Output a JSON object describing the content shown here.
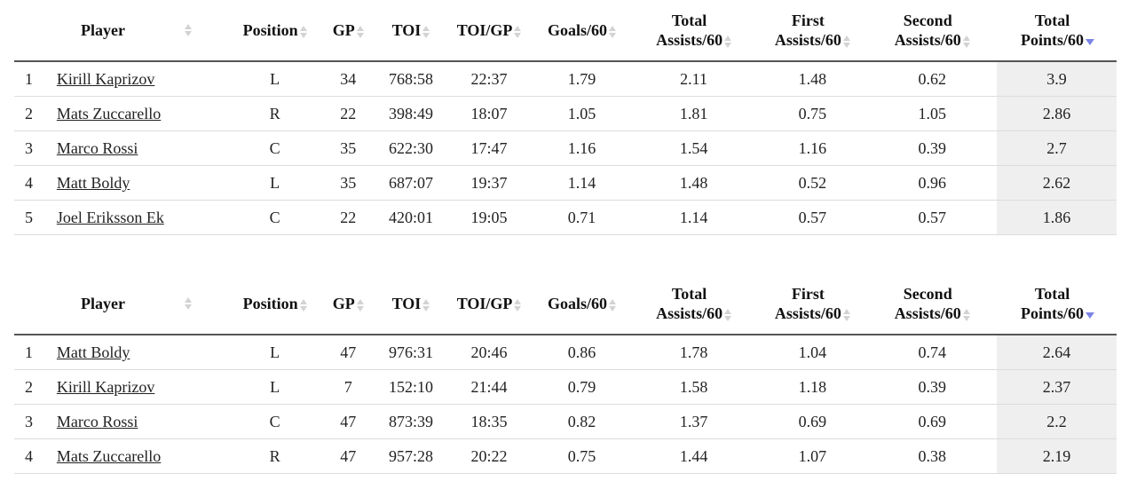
{
  "headers": {
    "player": "Player",
    "position": "Position",
    "gp": "GP",
    "toi": "TOI",
    "toi_gp": "TOI/GP",
    "goals60": "Goals/60",
    "total_assists60_l1": "Total",
    "total_assists60_l2": "Assists/60",
    "first_assists60_l1": "First",
    "first_assists60_l2": "Assists/60",
    "second_assists60_l1": "Second",
    "second_assists60_l2": "Assists/60",
    "total_points60_l1": "Total",
    "total_points60_l2": "Points/60"
  },
  "icons": {
    "sort_neutral": "sort-both-icon",
    "sort_desc": "sort-desc-icon",
    "sort_desc_color": "#7b84e6"
  },
  "table1": {
    "rows": [
      {
        "rank": "1",
        "player": "Kirill Kaprizov",
        "position": "L",
        "gp": "34",
        "toi": "768:58",
        "toi_gp": "22:37",
        "goals60": "1.79",
        "total_assists60": "2.11",
        "first_assists60": "1.48",
        "second_assists60": "0.62",
        "total_points60": "3.9"
      },
      {
        "rank": "2",
        "player": "Mats Zuccarello",
        "position": "R",
        "gp": "22",
        "toi": "398:49",
        "toi_gp": "18:07",
        "goals60": "1.05",
        "total_assists60": "1.81",
        "first_assists60": "0.75",
        "second_assists60": "1.05",
        "total_points60": "2.86"
      },
      {
        "rank": "3",
        "player": "Marco Rossi",
        "position": "C",
        "gp": "35",
        "toi": "622:30",
        "toi_gp": "17:47",
        "goals60": "1.16",
        "total_assists60": "1.54",
        "first_assists60": "1.16",
        "second_assists60": "0.39",
        "total_points60": "2.7"
      },
      {
        "rank": "4",
        "player": "Matt Boldy",
        "position": "L",
        "gp": "35",
        "toi": "687:07",
        "toi_gp": "19:37",
        "goals60": "1.14",
        "total_assists60": "1.48",
        "first_assists60": "0.52",
        "second_assists60": "0.96",
        "total_points60": "2.62"
      },
      {
        "rank": "5",
        "player": "Joel Eriksson Ek",
        "position": "C",
        "gp": "22",
        "toi": "420:01",
        "toi_gp": "19:05",
        "goals60": "0.71",
        "total_assists60": "1.14",
        "first_assists60": "0.57",
        "second_assists60": "0.57",
        "total_points60": "1.86"
      }
    ]
  },
  "table2": {
    "rows": [
      {
        "rank": "1",
        "player": "Matt Boldy",
        "position": "L",
        "gp": "47",
        "toi": "976:31",
        "toi_gp": "20:46",
        "goals60": "0.86",
        "total_assists60": "1.78",
        "first_assists60": "1.04",
        "second_assists60": "0.74",
        "total_points60": "2.64"
      },
      {
        "rank": "2",
        "player": "Kirill Kaprizov",
        "position": "L",
        "gp": "7",
        "toi": "152:10",
        "toi_gp": "21:44",
        "goals60": "0.79",
        "total_assists60": "1.58",
        "first_assists60": "1.18",
        "second_assists60": "0.39",
        "total_points60": "2.37"
      },
      {
        "rank": "3",
        "player": "Marco Rossi",
        "position": "C",
        "gp": "47",
        "toi": "873:39",
        "toi_gp": "18:35",
        "goals60": "0.82",
        "total_assists60": "1.37",
        "first_assists60": "0.69",
        "second_assists60": "0.69",
        "total_points60": "2.2"
      },
      {
        "rank": "4",
        "player": "Mats Zuccarello",
        "position": "R",
        "gp": "47",
        "toi": "957:28",
        "toi_gp": "20:22",
        "goals60": "0.75",
        "total_assists60": "1.44",
        "first_assists60": "1.07",
        "second_assists60": "0.38",
        "total_points60": "2.19"
      }
    ]
  }
}
